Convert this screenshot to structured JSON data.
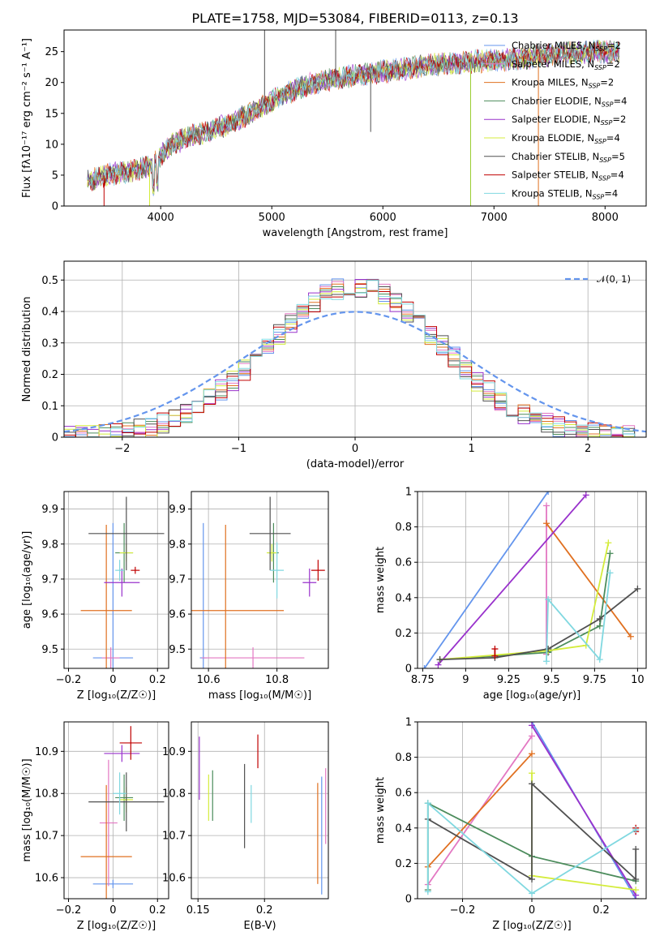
{
  "figure": {
    "title": "PLATE=1758, MJD=53084, FIBERID=0113, z=0.13"
  },
  "legend_models": [
    {
      "name": "Chabrier MILES",
      "nssp": "2",
      "color": "#6495ed"
    },
    {
      "name": "Salpeter MILES",
      "nssp": "2",
      "color": "#e377c2"
    },
    {
      "name": "Kroupa MILES",
      "nssp": "2",
      "color": "#e07020"
    },
    {
      "name": "Chabrier ELODIE",
      "nssp": "4",
      "color": "#4c8c5c"
    },
    {
      "name": "Salpeter ELODIE",
      "nssp": "2",
      "color": "#9932cc"
    },
    {
      "name": "Kroupa ELODIE",
      "nssp": "4",
      "color": "#d4ec3c"
    },
    {
      "name": "Chabrier STELIB",
      "nssp": "5",
      "color": "#505050"
    },
    {
      "name": "Salpeter STELIB",
      "nssp": "4",
      "color": "#c00000"
    },
    {
      "name": "Kroupa STELIB",
      "nssp": "4",
      "color": "#80d8e0"
    }
  ],
  "chart_data": [
    {
      "id": "spectrum",
      "type": "line",
      "xlabel": "wavelength [Angstrom, rest frame]",
      "ylabel": "Flux [fλ10⁻¹⁷ erg cm⁻² s⁻¹ A⁻¹]",
      "xlim": [
        3130,
        8370
      ],
      "ylim": [
        0,
        28.5
      ],
      "xticks": [
        4000,
        5000,
        6000,
        7000,
        8000
      ],
      "yticks": [
        0,
        5,
        10,
        15,
        20,
        25
      ],
      "grid": false,
      "continuum": {
        "x": [
          3350,
          3500,
          3700,
          3900,
          4000,
          4100,
          4300,
          4500,
          4700,
          4900,
          5100,
          5300,
          5500,
          5700,
          5900,
          6100,
          6300,
          6500,
          6700,
          6900,
          7100,
          7300,
          7500,
          7700,
          7900,
          8100
        ],
        "y": [
          4,
          5,
          5.5,
          6.5,
          8,
          10,
          11.5,
          12.5,
          14,
          16,
          18,
          19.5,
          20.5,
          21,
          21.5,
          22,
          22.5,
          23,
          23.2,
          23.5,
          23.7,
          24,
          24.5,
          24.8,
          25,
          25
        ]
      },
      "drops": [
        {
          "x": 3490,
          "y": 0,
          "color": "#c00000"
        },
        {
          "x": 3900,
          "y": 0,
          "color": "#d4ec3c"
        },
        {
          "x": 6790,
          "y": 0,
          "color": "#9acd32"
        },
        {
          "x": 7400,
          "y": 0,
          "color": "#e07020"
        },
        {
          "x": 4935,
          "y": 33,
          "color": "#505050"
        },
        {
          "x": 5575,
          "y": 33,
          "color": "#505050"
        },
        {
          "x": 5890,
          "y": 12,
          "color": "#505050"
        }
      ]
    },
    {
      "id": "residuals",
      "type": "histogram",
      "xlabel": "(data-model)/error",
      "ylabel": "Normed distribution",
      "xlim": [
        -2.5,
        2.5
      ],
      "ylim": [
        0,
        0.56
      ],
      "xticks": [
        -2,
        -1,
        0,
        1,
        2
      ],
      "yticks": [
        0.0,
        0.1,
        0.2,
        0.3,
        0.4,
        0.5
      ],
      "grid": true,
      "reference_curve": {
        "name": "𝒩(0, 1)",
        "mu": 0,
        "sigma": 1,
        "color": "#6495ed"
      },
      "bins": {
        "start": -2.5,
        "width": 0.1,
        "count": 50
      }
    },
    {
      "id": "age-vs-Z",
      "type": "errorbar",
      "xlabel": "Z [log₁₀(Z/Z☉)]",
      "ylabel": "age  [log₁₀(age/yr)]",
      "xlim": [
        -0.22,
        0.25
      ],
      "ylim": [
        9.445,
        9.95
      ],
      "xticks": [
        -0.2,
        0.0,
        0.2
      ],
      "yticks": [
        9.5,
        9.6,
        9.7,
        9.8,
        9.9
      ],
      "grid": true,
      "points": [
        {
          "x": 0.0,
          "y": 9.475,
          "xerr": 0.09,
          "yerr": 0.385,
          "color": "#6495ed"
        },
        {
          "x": -0.01,
          "y": 9.475,
          "xerr": 0.04,
          "yerr": 0.03,
          "color": "#e377c2"
        },
        {
          "x": -0.03,
          "y": 9.61,
          "xerr": 0.115,
          "yerr": 0.245,
          "color": "#e07020"
        },
        {
          "x": 0.05,
          "y": 9.775,
          "xerr": 0.04,
          "yerr": 0.085,
          "color": "#4c8c5c"
        },
        {
          "x": 0.04,
          "y": 9.69,
          "xerr": 0.08,
          "yerr": 0.04,
          "color": "#9932cc"
        },
        {
          "x": 0.06,
          "y": 9.775,
          "xerr": 0.03,
          "yerr": 0.025,
          "color": "#d4ec3c"
        },
        {
          "x": 0.06,
          "y": 9.83,
          "xerr": 0.17,
          "yerr": 0.105,
          "color": "#505050"
        },
        {
          "x": 0.1,
          "y": 9.725,
          "xerr": 0.02,
          "yerr": 0.01,
          "color": "#c00000"
        },
        {
          "x": 0.03,
          "y": 9.725,
          "xerr": 0.02,
          "yerr": 0.03,
          "color": "#80d8e0"
        }
      ]
    },
    {
      "id": "age-vs-mass",
      "type": "errorbar",
      "xlabel": "mass [log₁₀(M/M☉)]",
      "ylabel": "",
      "xlim": [
        10.55,
        10.95
      ],
      "ylim": [
        9.445,
        9.95
      ],
      "xticks": [
        10.6,
        10.8
      ],
      "yticks": [
        9.5,
        9.6,
        9.7,
        9.8,
        9.9
      ],
      "grid": true,
      "points": [
        {
          "x": 10.585,
          "y": 9.475,
          "xerr": 0.01,
          "yerr": 0.385,
          "color": "#6495ed"
        },
        {
          "x": 10.73,
          "y": 9.475,
          "xerr": 0.15,
          "yerr": 0.03,
          "color": "#e377c2"
        },
        {
          "x": 10.65,
          "y": 9.61,
          "xerr": 0.17,
          "yerr": 0.245,
          "color": "#e07020"
        },
        {
          "x": 10.79,
          "y": 9.775,
          "xerr": 0.015,
          "yerr": 0.085,
          "color": "#4c8c5c"
        },
        {
          "x": 10.895,
          "y": 9.69,
          "xerr": 0.02,
          "yerr": 0.04,
          "color": "#9932cc"
        },
        {
          "x": 10.785,
          "y": 9.775,
          "xerr": 0.015,
          "yerr": 0.025,
          "color": "#d4ec3c"
        },
        {
          "x": 10.78,
          "y": 9.83,
          "xerr": 0.06,
          "yerr": 0.105,
          "color": "#505050"
        },
        {
          "x": 10.92,
          "y": 9.725,
          "xerr": 0.02,
          "yerr": 0.03,
          "color": "#c00000"
        },
        {
          "x": 10.8,
          "y": 9.725,
          "xerr": 0.02,
          "yerr": 0.08,
          "color": "#80d8e0"
        }
      ]
    },
    {
      "id": "weight-vs-age",
      "type": "line",
      "xlabel": "age  [log₁₀(age/yr)]",
      "ylabel": "mass weight",
      "xlim": [
        8.72,
        10.05
      ],
      "ylim": [
        0,
        1.0
      ],
      "xticks": [
        8.75,
        9.0,
        9.25,
        9.5,
        9.75,
        10.0
      ],
      "yticks": [
        0.0,
        0.2,
        0.4,
        0.6,
        0.8,
        1.0
      ],
      "grid": true,
      "series": [
        {
          "color": "#6495ed",
          "x": [
            8.76,
            9.48
          ],
          "y": [
            0.0,
            1.0
          ]
        },
        {
          "color": "#e377c2",
          "x": [
            9.47,
            9.47
          ],
          "y": [
            0.08,
            0.92
          ]
        },
        {
          "color": "#e07020",
          "x": [
            9.47,
            9.96
          ],
          "y": [
            0.82,
            0.18
          ]
        },
        {
          "color": "#4c8c5c",
          "x": [
            8.85,
            9.48,
            9.78,
            9.84
          ],
          "y": [
            0.05,
            0.09,
            0.24,
            0.65
          ]
        },
        {
          "color": "#9932cc",
          "x": [
            8.84,
            9.7
          ],
          "y": [
            0.02,
            0.98
          ]
        },
        {
          "color": "#d4ec3c",
          "x": [
            8.85,
            9.48,
            9.7,
            9.83
          ],
          "y": [
            0.05,
            0.1,
            0.13,
            0.71
          ]
        },
        {
          "color": "#505050",
          "x": [
            8.85,
            9.17,
            9.48,
            9.78,
            10.0
          ],
          "y": [
            0.05,
            0.06,
            0.11,
            0.28,
            0.45
          ]
        },
        {
          "color": "#c00000",
          "x": [
            9.17,
            9.17
          ],
          "y": [
            0.07,
            0.11
          ]
        },
        {
          "color": "#80d8e0",
          "x": [
            9.47,
            9.48,
            9.78,
            9.84
          ],
          "y": [
            0.04,
            0.39,
            0.05,
            0.54
          ]
        }
      ]
    },
    {
      "id": "mass-vs-Z",
      "type": "errorbar",
      "xlabel": "Z [log₁₀(Z/Z☉)]",
      "ylabel": "mass [log₁₀(M/M☉)]",
      "xlim": [
        -0.22,
        0.25
      ],
      "ylim": [
        10.55,
        10.97
      ],
      "xticks": [
        -0.2,
        0.0,
        0.2
      ],
      "yticks": [
        10.6,
        10.7,
        10.8,
        10.9
      ],
      "grid": true,
      "points": [
        {
          "x": 0.0,
          "y": 10.585,
          "xerr": 0.09,
          "yerr": 0.01,
          "color": "#6495ed"
        },
        {
          "x": -0.02,
          "y": 10.73,
          "xerr": 0.04,
          "yerr": 0.15,
          "color": "#e377c2"
        },
        {
          "x": -0.03,
          "y": 10.65,
          "xerr": 0.115,
          "yerr": 0.17,
          "color": "#e07020"
        },
        {
          "x": 0.05,
          "y": 10.79,
          "xerr": 0.04,
          "yerr": 0.055,
          "color": "#4c8c5c"
        },
        {
          "x": 0.04,
          "y": 10.895,
          "xerr": 0.08,
          "yerr": 0.02,
          "color": "#9932cc"
        },
        {
          "x": 0.06,
          "y": 10.785,
          "xerr": 0.03,
          "yerr": 0.03,
          "color": "#d4ec3c"
        },
        {
          "x": 0.06,
          "y": 10.78,
          "xerr": 0.17,
          "yerr": 0.07,
          "color": "#505050"
        },
        {
          "x": 0.08,
          "y": 10.92,
          "xerr": 0.05,
          "yerr": 0.04,
          "color": "#c00000"
        },
        {
          "x": 0.03,
          "y": 10.8,
          "xerr": 0.03,
          "yerr": 0.05,
          "color": "#80d8e0"
        }
      ]
    },
    {
      "id": "mass-vs-EBV",
      "type": "errorbar",
      "xlabel": "E(B-V)",
      "ylabel": "",
      "xlim": [
        0.145,
        0.248
      ],
      "ylim": [
        10.55,
        10.97
      ],
      "xticks": [
        0.15,
        0.2
      ],
      "yticks": [
        10.6,
        10.7,
        10.8,
        10.9
      ],
      "grid": true,
      "points": [
        {
          "x": 0.243,
          "y": 10.7,
          "xerr": 0.0,
          "yerr": 0.14,
          "color": "#6495ed"
        },
        {
          "x": 0.246,
          "y": 10.77,
          "xerr": 0.0,
          "yerr": 0.09,
          "color": "#e377c2"
        },
        {
          "x": 0.24,
          "y": 10.705,
          "xerr": 0.0,
          "yerr": 0.12,
          "color": "#e07020"
        },
        {
          "x": 0.161,
          "y": 10.795,
          "xerr": 0.0,
          "yerr": 0.06,
          "color": "#4c8c5c"
        },
        {
          "x": 0.151,
          "y": 10.86,
          "xerr": 0.0,
          "yerr": 0.075,
          "color": "#9932cc"
        },
        {
          "x": 0.158,
          "y": 10.79,
          "xerr": 0.0,
          "yerr": 0.055,
          "color": "#d4ec3c"
        },
        {
          "x": 0.185,
          "y": 10.77,
          "xerr": 0.0,
          "yerr": 0.1,
          "color": "#505050"
        },
        {
          "x": 0.195,
          "y": 10.9,
          "xerr": 0.0,
          "yerr": 0.04,
          "color": "#c00000"
        },
        {
          "x": 0.19,
          "y": 10.775,
          "xerr": 0.0,
          "yerr": 0.045,
          "color": "#80d8e0"
        }
      ]
    },
    {
      "id": "weight-vs-Z",
      "type": "line",
      "xlabel": "Z [log₁₀(Z/Z☉)]",
      "ylabel": "mass weight",
      "xlim": [
        -0.33,
        0.33
      ],
      "ylim": [
        0,
        1.0
      ],
      "xticks": [
        -0.2,
        0.0,
        0.2
      ],
      "yticks": [
        0.0,
        0.2,
        0.4,
        0.6,
        0.8,
        1.0
      ],
      "grid": true,
      "series": [
        {
          "color": "#6495ed",
          "x": [
            0.0,
            0.3
          ],
          "y": [
            1.0,
            0.0
          ]
        },
        {
          "color": "#e377c2",
          "x": [
            -0.3,
            0.0
          ],
          "y": [
            0.08,
            0.92
          ]
        },
        {
          "color": "#e07020",
          "x": [
            -0.3,
            0.0
          ],
          "y": [
            0.18,
            0.82
          ]
        },
        {
          "color": "#4c8c5c",
          "x": [
            -0.3,
            -0.3,
            0.0,
            0.3
          ],
          "y": [
            0.05,
            0.54,
            0.24,
            0.1
          ]
        },
        {
          "color": "#9932cc",
          "x": [
            0.0,
            0.3
          ],
          "y": [
            0.98,
            0.02
          ]
        },
        {
          "color": "#d4ec3c",
          "x": [
            0.0,
            0.0,
            0.3
          ],
          "y": [
            0.71,
            0.13,
            0.05
          ]
        },
        {
          "color": "#505050",
          "x": [
            -0.3,
            0.0,
            0.0,
            0.3,
            0.3
          ],
          "y": [
            0.45,
            0.11,
            0.65,
            0.11,
            0.28
          ]
        },
        {
          "color": "#c00000",
          "x": [
            0.3,
            0.3
          ],
          "y": [
            0.38,
            0.4
          ]
        },
        {
          "color": "#80d8e0",
          "x": [
            -0.3,
            -0.3,
            0.0,
            0.3
          ],
          "y": [
            0.04,
            0.54,
            0.03,
            0.39
          ]
        }
      ]
    }
  ]
}
